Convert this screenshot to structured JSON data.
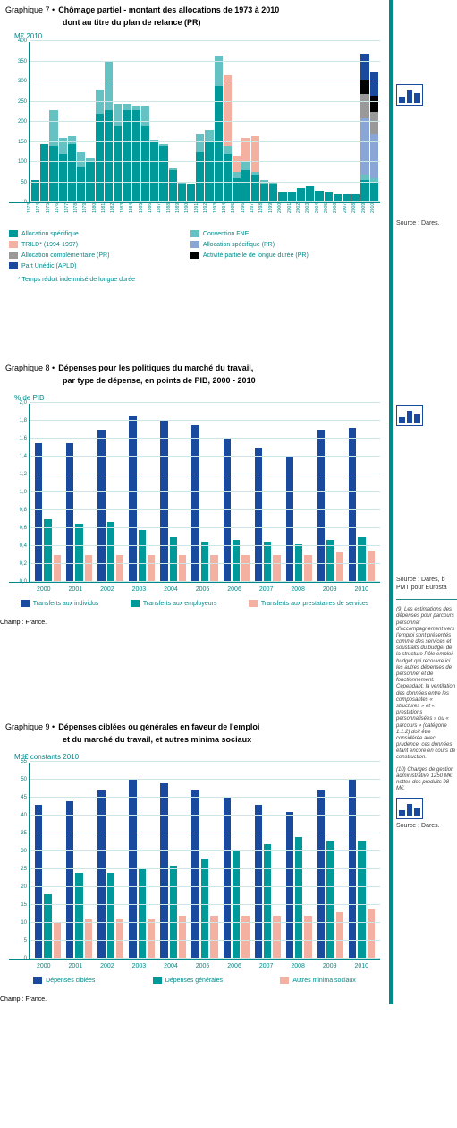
{
  "chart7": {
    "graphique": "Graphique 7 •",
    "title": "Chômage partiel - montant des allocations de 1973 à 2010",
    "subtitle": "dont au titre du plan de relance (PR)",
    "ylabel": "M€ 2010",
    "ymax": 400,
    "yticks": [
      0,
      50,
      100,
      150,
      200,
      250,
      300,
      350,
      400
    ],
    "years": [
      "1973",
      "1974",
      "1975",
      "1976",
      "1977",
      "1978",
      "1979",
      "1980",
      "1981",
      "1982",
      "1983",
      "1984",
      "1985",
      "1986",
      "1987",
      "1988",
      "1989",
      "1990",
      "1991",
      "1992",
      "1993",
      "1994",
      "1995",
      "1996",
      "1997",
      "1998",
      "1999",
      "2000",
      "2001",
      "2002",
      "2003",
      "2004",
      "2005",
      "2006",
      "2007",
      "2008",
      "2009",
      "2010"
    ],
    "colors": {
      "alloc_spec": "#009999",
      "fne": "#66c2c2",
      "trild": "#f4b0a0",
      "alloc_spec_pr": "#8aa6d6",
      "alloc_comp_pr": "#999999",
      "apld_pr": "#000000",
      "unedic_apld": "#1a4a9e"
    },
    "series": [
      {
        "y": 1973,
        "a": 55,
        "f": 0
      },
      {
        "y": 1974,
        "a": 145,
        "f": 0
      },
      {
        "y": 1975,
        "a": 140,
        "f": 90
      },
      {
        "y": 1976,
        "a": 120,
        "f": 40
      },
      {
        "y": 1977,
        "a": 145,
        "f": 20
      },
      {
        "y": 1978,
        "a": 90,
        "f": 35
      },
      {
        "y": 1979,
        "a": 100,
        "f": 10
      },
      {
        "y": 1980,
        "a": 220,
        "f": 60
      },
      {
        "y": 1981,
        "a": 230,
        "f": 120
      },
      {
        "y": 1982,
        "a": 190,
        "f": 55
      },
      {
        "y": 1983,
        "a": 230,
        "f": 15
      },
      {
        "y": 1984,
        "a": 230,
        "f": 10
      },
      {
        "y": 1985,
        "a": 190,
        "f": 50
      },
      {
        "y": 1986,
        "a": 150,
        "f": 5
      },
      {
        "y": 1987,
        "a": 140,
        "f": 5
      },
      {
        "y": 1988,
        "a": 80,
        "f": 5
      },
      {
        "y": 1989,
        "a": 45,
        "f": 5
      },
      {
        "y": 1990,
        "a": 45,
        "f": 0
      },
      {
        "y": 1991,
        "a": 125,
        "f": 45
      },
      {
        "y": 1992,
        "a": 150,
        "f": 30
      },
      {
        "y": 1993,
        "a": 290,
        "f": 75
      },
      {
        "y": 1994,
        "a": 120,
        "f": 20,
        "t": 175
      },
      {
        "y": 1995,
        "a": 60,
        "f": 15,
        "t": 40
      },
      {
        "y": 1996,
        "a": 80,
        "f": 20,
        "t": 60
      },
      {
        "y": 1997,
        "a": 70,
        "f": 5,
        "t": 90
      },
      {
        "y": 1998,
        "a": 45,
        "f": 10
      },
      {
        "y": 1999,
        "a": 45,
        "f": 5
      },
      {
        "y": 2000,
        "a": 25,
        "f": 0
      },
      {
        "y": 2001,
        "a": 25,
        "f": 0
      },
      {
        "y": 2002,
        "a": 35,
        "f": 0
      },
      {
        "y": 2003,
        "a": 40,
        "f": 0
      },
      {
        "y": 2004,
        "a": 30,
        "f": 0
      },
      {
        "y": 2005,
        "a": 25,
        "f": 0
      },
      {
        "y": 2006,
        "a": 20,
        "f": 0
      },
      {
        "y": 2007,
        "a": 20,
        "f": 0
      },
      {
        "y": 2008,
        "a": 20,
        "f": 0
      },
      {
        "y": 2009,
        "a": 55,
        "f": 15,
        "spr": 140,
        "cpr": 60,
        "ap": 35,
        "un": 65
      },
      {
        "y": 2010,
        "a": 50,
        "f": 10,
        "spr": 110,
        "cpr": 55,
        "ap": 40,
        "un": 60
      }
    ],
    "legend": [
      {
        "color": "#009999",
        "label": "Allocation spécifique"
      },
      {
        "color": "#66c2c2",
        "label": "Convention FNE"
      },
      {
        "color": "#f4b0a0",
        "label": "TRILD* (1994-1997)"
      },
      {
        "color": "#8aa6d6",
        "label": "Allocation spécifique (PR)"
      },
      {
        "color": "#999999",
        "label": "Allocation complémentaire (PR)"
      },
      {
        "color": "#000000",
        "label": "Activité partielle de longue durée (PR)"
      },
      {
        "color": "#1a4a9e",
        "label": "Part Unédic (APLD)"
      }
    ],
    "footnote": "* Temps réduit indemnisé de longue durée",
    "source": "Source : Dares."
  },
  "chart8": {
    "graphique": "Graphique 8 •",
    "title": "Dépenses pour les politiques du marché du travail,",
    "subtitle": "par type de dépense, en points de PIB, 2000 - 2010",
    "ylabel": "% de PIB",
    "ymax": 2.0,
    "yticks": [
      "0,0",
      "0,2",
      "0,4",
      "0,6",
      "0,8",
      "1,0",
      "1,2",
      "1,4",
      "1,6",
      "1,8",
      "2,0"
    ],
    "ytick_vals": [
      0,
      0.2,
      0.4,
      0.6,
      0.8,
      1.0,
      1.2,
      1.4,
      1.6,
      1.8,
      2.0
    ],
    "years": [
      "2000",
      "2001",
      "2002",
      "2003",
      "2004",
      "2005",
      "2006",
      "2007",
      "2008",
      "2009",
      "2010"
    ],
    "colors": {
      "ind": "#1a4a9e",
      "emp": "#009999",
      "prest": "#f4b0a0"
    },
    "data": [
      {
        "ind": 1.55,
        "emp": 0.7,
        "prest": 0.3
      },
      {
        "ind": 1.55,
        "emp": 0.65,
        "prest": 0.3
      },
      {
        "ind": 1.7,
        "emp": 0.67,
        "prest": 0.3
      },
      {
        "ind": 1.85,
        "emp": 0.58,
        "prest": 0.3
      },
      {
        "ind": 1.8,
        "emp": 0.5,
        "prest": 0.3
      },
      {
        "ind": 1.75,
        "emp": 0.45,
        "prest": 0.3
      },
      {
        "ind": 1.6,
        "emp": 0.47,
        "prest": 0.3
      },
      {
        "ind": 1.5,
        "emp": 0.45,
        "prest": 0.3
      },
      {
        "ind": 1.4,
        "emp": 0.42,
        "prest": 0.3
      },
      {
        "ind": 1.7,
        "emp": 0.47,
        "prest": 0.33
      },
      {
        "ind": 1.72,
        "emp": 0.5,
        "prest": 0.35
      }
    ],
    "legend": [
      {
        "color": "#1a4a9e",
        "label": "Transferts aux individus"
      },
      {
        "color": "#009999",
        "label": "Transferts aux employeurs"
      },
      {
        "color": "#f4b0a0",
        "label": "Transferts aux prestataires de services"
      }
    ],
    "champ": "Champ : France.",
    "source": "Source : Dares, b PMT pour Eurosta"
  },
  "chart9": {
    "graphique": "Graphique 9 •",
    "title": "Dépenses ciblées ou générales en faveur de l'emploi",
    "subtitle": "et du marché du travail, et autres minima sociaux",
    "ylabel": "Md€ constants 2010",
    "ymax": 55,
    "yticks": [
      0,
      5,
      10,
      15,
      20,
      25,
      30,
      35,
      40,
      45,
      50,
      55
    ],
    "years": [
      "2000",
      "2001",
      "2002",
      "2003",
      "2004",
      "2005",
      "2006",
      "2007",
      "2008",
      "2009",
      "2010"
    ],
    "colors": {
      "cib": "#1a4a9e",
      "gen": "#009999",
      "min": "#f4b0a0"
    },
    "data": [
      {
        "cib": 43,
        "gen": 18,
        "min": 10
      },
      {
        "cib": 44,
        "gen": 24,
        "min": 11
      },
      {
        "cib": 47,
        "gen": 24,
        "min": 11
      },
      {
        "cib": 50,
        "gen": 25,
        "min": 11
      },
      {
        "cib": 49,
        "gen": 26,
        "min": 12
      },
      {
        "cib": 47,
        "gen": 28,
        "min": 12
      },
      {
        "cib": 45,
        "gen": 30,
        "min": 12
      },
      {
        "cib": 43,
        "gen": 32,
        "min": 12
      },
      {
        "cib": 41,
        "gen": 34,
        "min": 12
      },
      {
        "cib": 47,
        "gen": 33,
        "min": 13
      },
      {
        "cib": 50,
        "gen": 33,
        "min": 14
      }
    ],
    "legend": [
      {
        "color": "#1a4a9e",
        "label": "Dépenses ciblées"
      },
      {
        "color": "#009999",
        "label": "Dépenses générales"
      },
      {
        "color": "#f4b0a0",
        "label": "Autres minima sociaux"
      }
    ],
    "champ": "Champ : France.",
    "source": "Source : Dares."
  },
  "sidenotes": {
    "note9": "(9) Les estimations des dépenses pour parcours personnal d'accompagnement vers l'emploi sont présentés comme des services et soustraits du budget de la structure Pôle emploi, budget qui recouvre ici les autres dépenses de personnel et de fonctionnement. Cependant, la ventilation des données entre les composantes « structures » et « prestations personnalisées » ou « parcours » (catégorie 1.1.2) doit être considérée avec prudence, ces données étant encore en cours de construction.",
    "note10": "(10) Charges de gestion administrative 1250 M€ nettes des produits 98 M€."
  }
}
